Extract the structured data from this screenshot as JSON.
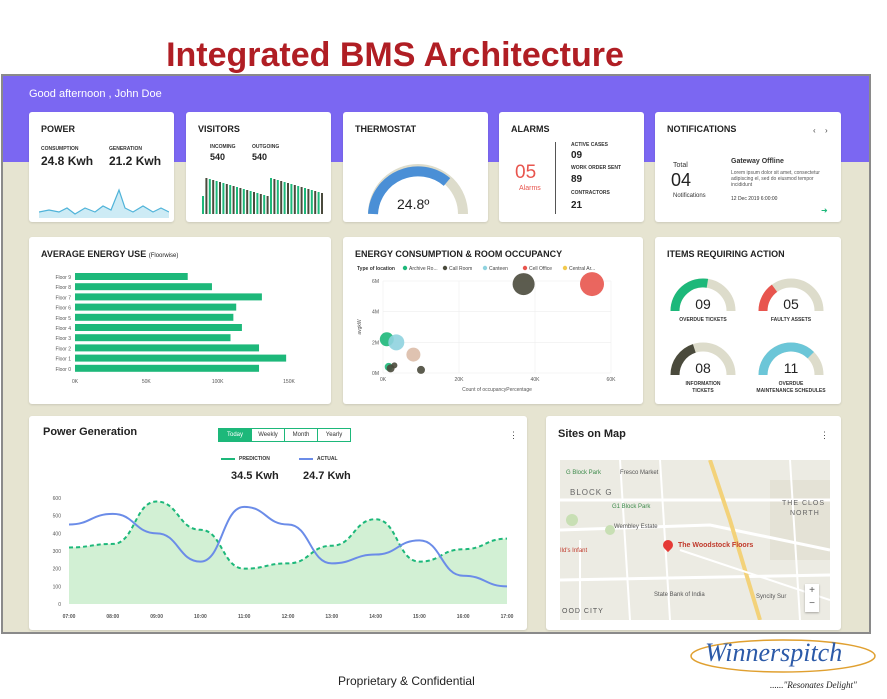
{
  "slide": {
    "title": "Integrated BMS Architecture",
    "footer": "Proprietary & Confidential",
    "logo": "Winnerspitch",
    "slogan": "......\"Resonates Delight\""
  },
  "dashboard": {
    "greeting": "Good afternoon , John Doe",
    "power": {
      "title": "POWER",
      "consumption_label": "CONSUMPTION",
      "consumption": "24.8 Kwh",
      "generation_label": "GENERATION",
      "generation": "21.2 Kwh"
    },
    "visitors": {
      "title": "VISITORS",
      "incoming_label": "INCOMING",
      "incoming": "540",
      "outgoing_label": "OUTGOING",
      "outgoing": "540"
    },
    "thermostat": {
      "title": "THERMOSTAT",
      "value": "24.8º"
    },
    "alarms": {
      "title": "ALARMS",
      "count": "05",
      "count_label": "Alarms",
      "active_label": "ACTIVE CASES",
      "active": "09",
      "wo_label": "WORK ORDER SENT",
      "wo": "89",
      "contractors_label": "CONTRACTORS",
      "contractors": "21"
    },
    "notifications": {
      "title": "NOTIFICATIONS",
      "total_label": "Total",
      "total": "04",
      "sub_label": "Notifications",
      "alert_title": "Gateway Offline",
      "alert_body": "Lorem ipsum dolor sit amet, consectetur adipiscing el, sed do eiusmod tempor incididunt",
      "alert_date": "12 Dec 2019 6:00:00"
    },
    "energy_use": {
      "title": "AVERAGE ENERGY USE",
      "title_note": "(Floorwise)"
    },
    "occupancy": {
      "title": "ENERGY CONSUMPTION & ROOM OCCUPANCY",
      "legend_label": "Type of location",
      "xlabel": "Count of occupancyPercentage",
      "ylabel": "avgkW"
    },
    "items_action": {
      "title": "ITEMS REQUIRING ACTION",
      "items": [
        {
          "value": "09",
          "label1": "OVERDUE TICKETS",
          "label2": "",
          "color": "#1db87a",
          "fraction": 0.55
        },
        {
          "value": "05",
          "label1": "FAULTY ASSETS",
          "label2": "",
          "color": "#e8554e",
          "fraction": 0.3
        },
        {
          "value": "08",
          "label1": "INFORMATION",
          "label2": "TICKETS",
          "color": "#4a4a3c",
          "fraction": 0.4
        },
        {
          "value": "11",
          "label1": "OVERDUE",
          "label2": "MAINTENANCE SCHEDULES",
          "color": "#6bc6d8",
          "fraction": 0.75
        }
      ]
    },
    "power_gen": {
      "title": "Power Generation",
      "tabs": [
        "Today",
        "Weekly",
        "Month",
        "Yearly"
      ],
      "prediction_label": "PREDICTION",
      "prediction": "34.5 Kwh",
      "actual_label": "ACTUAL",
      "actual": "24.7 Kwh"
    },
    "map": {
      "title": "Sites on Map",
      "marker_label": "The Woodstock Floors",
      "places": [
        "G Block Park",
        "Fresco Market",
        "BLOCK G",
        "G1 Block Park",
        "Wembley Estate",
        "Ild's Infant",
        "State Bank of India",
        "OOD CITY",
        "THE CLOS",
        "NORTH",
        "Syncity Sur"
      ]
    }
  },
  "chart_data": [
    {
      "type": "bar",
      "title": "AVERAGE ENERGY USE (Floorwise)",
      "orientation": "horizontal",
      "categories": [
        "Floor 9",
        "Floor 8",
        "Floor 7",
        "Floor 6",
        "Floor 5",
        "Floor 4",
        "Floor 3",
        "Floor 2",
        "Floor 1",
        "Floor 0"
      ],
      "values": [
        79,
        96,
        131,
        113,
        111,
        117,
        109,
        129,
        148,
        129
      ],
      "xticks": [
        "0K",
        "50K",
        "100K",
        "150K"
      ],
      "xlim": [
        0,
        150
      ],
      "color": "#1db87a"
    },
    {
      "type": "scatter",
      "title": "ENERGY CONSUMPTION & ROOM OCCUPANCY",
      "xlabel": "Count of occupancyPercentage",
      "ylabel": "avgkW",
      "xticks": [
        "0K",
        "20K",
        "40K",
        "60K"
      ],
      "yticks": [
        "0M",
        "2M",
        "4M",
        "6M"
      ],
      "xlim": [
        0,
        60
      ],
      "ylim": [
        0,
        6
      ],
      "legend": [
        "Archive Ro...",
        "Call Room",
        "Canteen",
        "Cell Office",
        "Central Ar..."
      ],
      "series": [
        {
          "name": "Archive Ro...",
          "color": "#1db87a",
          "points": [
            [
              1,
              2.2
            ],
            [
              1.5,
              0.4
            ]
          ]
        },
        {
          "name": "Call Room",
          "color": "#4a4a3c",
          "points": [
            [
              37,
              5.8
            ],
            [
              2,
              0.3
            ],
            [
              3,
              0.5
            ],
            [
              10,
              0.2
            ]
          ]
        },
        {
          "name": "Canteen",
          "color": "#8fd3df",
          "points": [
            [
              3.5,
              2.0
            ]
          ]
        },
        {
          "name": "Cell Office",
          "color": "#e8554e",
          "points": [
            [
              55,
              5.8
            ]
          ]
        },
        {
          "name": "Central Ar...",
          "color": "#f2c94c",
          "points": []
        },
        {
          "name": "",
          "color": "#dcbda8",
          "points": [
            [
              8,
              1.2
            ]
          ]
        }
      ]
    },
    {
      "type": "line",
      "title": "Power Generation",
      "x": [
        "07:00",
        "08:00",
        "09:00",
        "10:00",
        "11:00",
        "12:00",
        "13:00",
        "14:00",
        "15:00",
        "16:00",
        "17:00"
      ],
      "yticks": [
        "0",
        "100",
        "200",
        "300",
        "400",
        "500",
        "600"
      ],
      "ylim": [
        0,
        600
      ],
      "series": [
        {
          "name": "PREDICTION",
          "color": "#1db87a",
          "style": "dashed",
          "area": true,
          "values": [
            320,
            340,
            580,
            420,
            200,
            230,
            330,
            480,
            240,
            310,
            370
          ]
        },
        {
          "name": "ACTUAL",
          "color": "#6b8ce8",
          "style": "solid",
          "values": [
            450,
            510,
            400,
            240,
            550,
            450,
            230,
            280,
            360,
            160,
            100
          ]
        }
      ]
    }
  ]
}
